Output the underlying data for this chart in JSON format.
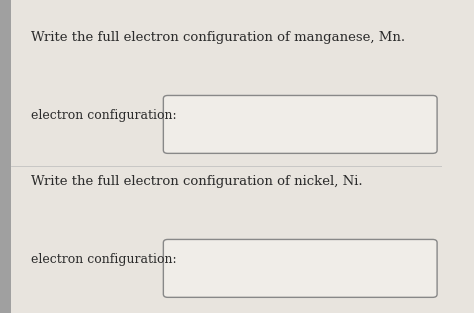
{
  "background_color": "#e8e4de",
  "panel_color": "#edeae4",
  "text_color": "#2b2b2b",
  "title1": "Write the full electron configuration of manganese, Mn.",
  "title2": "Write the full electron configuration of nickel, Ni.",
  "label": "electron configuration:",
  "box_facecolor": "#f0ede8",
  "box_edgecolor": "#888888",
  "left_bar_color": "#a0a0a0",
  "divider_color": "#bbbbbb",
  "fontsize_title": 9.5,
  "fontsize_label": 9.0
}
